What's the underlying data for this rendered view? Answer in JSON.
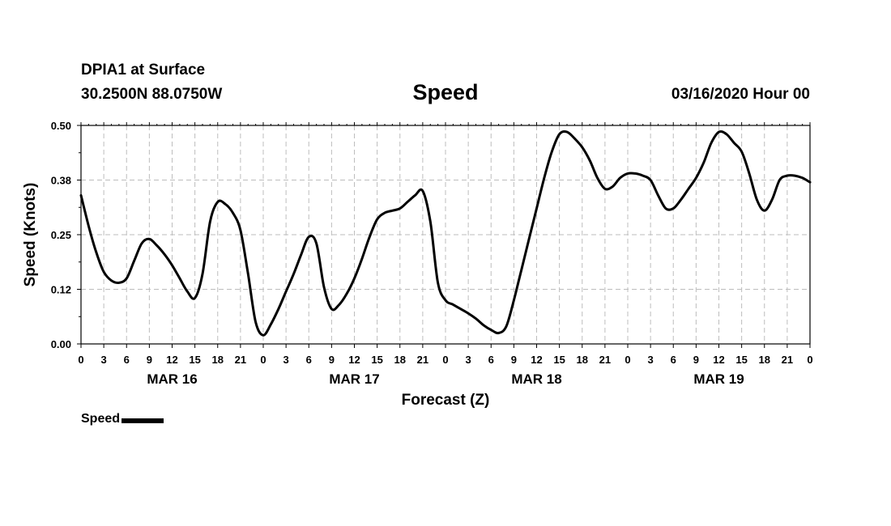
{
  "header": {
    "station": "DPIA1 at Surface",
    "coords": "30.2500N 88.0750W",
    "title": "Speed",
    "datetime": "03/16/2020 Hour 00"
  },
  "legend": {
    "label": "Speed",
    "color": "#000000"
  },
  "chart_data": {
    "type": "line",
    "title": "Speed",
    "xlabel": "Forecast (Z)",
    "ylabel": "Speed (Knots)",
    "x_unit": "forecast hour",
    "xlim": [
      0,
      96
    ],
    "ylim": [
      0,
      0.5
    ],
    "y_ticks": [
      "0.00",
      "0.12",
      "0.25",
      "0.38",
      "0.50"
    ],
    "x_ticks": [
      {
        "x": 0,
        "label": "0"
      },
      {
        "x": 3,
        "label": "3"
      },
      {
        "x": 6,
        "label": "6"
      },
      {
        "x": 9,
        "label": "9"
      },
      {
        "x": 12,
        "label": "12"
      },
      {
        "x": 15,
        "label": "15"
      },
      {
        "x": 18,
        "label": "18"
      },
      {
        "x": 21,
        "label": "21"
      },
      {
        "x": 24,
        "label": "0"
      },
      {
        "x": 27,
        "label": "3"
      },
      {
        "x": 30,
        "label": "6"
      },
      {
        "x": 33,
        "label": "9"
      },
      {
        "x": 36,
        "label": "12"
      },
      {
        "x": 39,
        "label": "15"
      },
      {
        "x": 42,
        "label": "18"
      },
      {
        "x": 45,
        "label": "21"
      },
      {
        "x": 48,
        "label": "0"
      },
      {
        "x": 51,
        "label": "3"
      },
      {
        "x": 54,
        "label": "6"
      },
      {
        "x": 57,
        "label": "9"
      },
      {
        "x": 60,
        "label": "12"
      },
      {
        "x": 63,
        "label": "15"
      },
      {
        "x": 66,
        "label": "18"
      },
      {
        "x": 69,
        "label": "21"
      },
      {
        "x": 72,
        "label": "0"
      },
      {
        "x": 75,
        "label": "3"
      },
      {
        "x": 78,
        "label": "6"
      },
      {
        "x": 81,
        "label": "9"
      },
      {
        "x": 84,
        "label": "12"
      },
      {
        "x": 87,
        "label": "15"
      },
      {
        "x": 90,
        "label": "18"
      },
      {
        "x": 93,
        "label": "21"
      },
      {
        "x": 96,
        "label": "0"
      }
    ],
    "day_labels": [
      {
        "x": 12,
        "label": "MAR 16"
      },
      {
        "x": 36,
        "label": "MAR 17"
      },
      {
        "x": 60,
        "label": "MAR 18"
      },
      {
        "x": 84,
        "label": "MAR 19"
      }
    ],
    "grid": true,
    "series": [
      {
        "name": "Speed",
        "color": "#000000",
        "points": [
          [
            0,
            0.34
          ],
          [
            1,
            0.27
          ],
          [
            2,
            0.21
          ],
          [
            3,
            0.165
          ],
          [
            4,
            0.145
          ],
          [
            5,
            0.14
          ],
          [
            6,
            0.15
          ],
          [
            7,
            0.19
          ],
          [
            8,
            0.23
          ],
          [
            9,
            0.24
          ],
          [
            10,
            0.225
          ],
          [
            11,
            0.205
          ],
          [
            12,
            0.18
          ],
          [
            13,
            0.15
          ],
          [
            14,
            0.12
          ],
          [
            15,
            0.105
          ],
          [
            16,
            0.16
          ],
          [
            17,
            0.28
          ],
          [
            18,
            0.325
          ],
          [
            19,
            0.32
          ],
          [
            20,
            0.3
          ],
          [
            21,
            0.26
          ],
          [
            22,
            0.16
          ],
          [
            23,
            0.05
          ],
          [
            24,
            0.02
          ],
          [
            25,
            0.045
          ],
          [
            26,
            0.08
          ],
          [
            27,
            0.12
          ],
          [
            28,
            0.16
          ],
          [
            29,
            0.205
          ],
          [
            30,
            0.245
          ],
          [
            31,
            0.23
          ],
          [
            32,
            0.13
          ],
          [
            33,
            0.08
          ],
          [
            34,
            0.09
          ],
          [
            35,
            0.115
          ],
          [
            36,
            0.15
          ],
          [
            37,
            0.195
          ],
          [
            38,
            0.245
          ],
          [
            39,
            0.285
          ],
          [
            40,
            0.3
          ],
          [
            41,
            0.305
          ],
          [
            42,
            0.31
          ],
          [
            43,
            0.325
          ],
          [
            44,
            0.34
          ],
          [
            45,
            0.35
          ],
          [
            46,
            0.28
          ],
          [
            47,
            0.14
          ],
          [
            48,
            0.1
          ],
          [
            49,
            0.09
          ],
          [
            50,
            0.08
          ],
          [
            51,
            0.07
          ],
          [
            52,
            0.058
          ],
          [
            53,
            0.043
          ],
          [
            54,
            0.032
          ],
          [
            55,
            0.025
          ],
          [
            56,
            0.04
          ],
          [
            57,
            0.1
          ],
          [
            58,
            0.17
          ],
          [
            59,
            0.24
          ],
          [
            60,
            0.31
          ],
          [
            61,
            0.38
          ],
          [
            62,
            0.44
          ],
          [
            63,
            0.48
          ],
          [
            64,
            0.485
          ],
          [
            65,
            0.47
          ],
          [
            66,
            0.45
          ],
          [
            67,
            0.42
          ],
          [
            68,
            0.38
          ],
          [
            69,
            0.355
          ],
          [
            70,
            0.36
          ],
          [
            71,
            0.38
          ],
          [
            72,
            0.39
          ],
          [
            73,
            0.39
          ],
          [
            74,
            0.385
          ],
          [
            75,
            0.375
          ],
          [
            76,
            0.34
          ],
          [
            77,
            0.31
          ],
          [
            78,
            0.31
          ],
          [
            79,
            0.33
          ],
          [
            80,
            0.355
          ],
          [
            81,
            0.38
          ],
          [
            82,
            0.415
          ],
          [
            83,
            0.46
          ],
          [
            84,
            0.485
          ],
          [
            85,
            0.48
          ],
          [
            86,
            0.46
          ],
          [
            87,
            0.44
          ],
          [
            88,
            0.39
          ],
          [
            89,
            0.33
          ],
          [
            90,
            0.305
          ],
          [
            91,
            0.33
          ],
          [
            92,
            0.375
          ],
          [
            93,
            0.385
          ],
          [
            94,
            0.385
          ],
          [
            95,
            0.38
          ],
          [
            96,
            0.37
          ]
        ]
      }
    ]
  }
}
